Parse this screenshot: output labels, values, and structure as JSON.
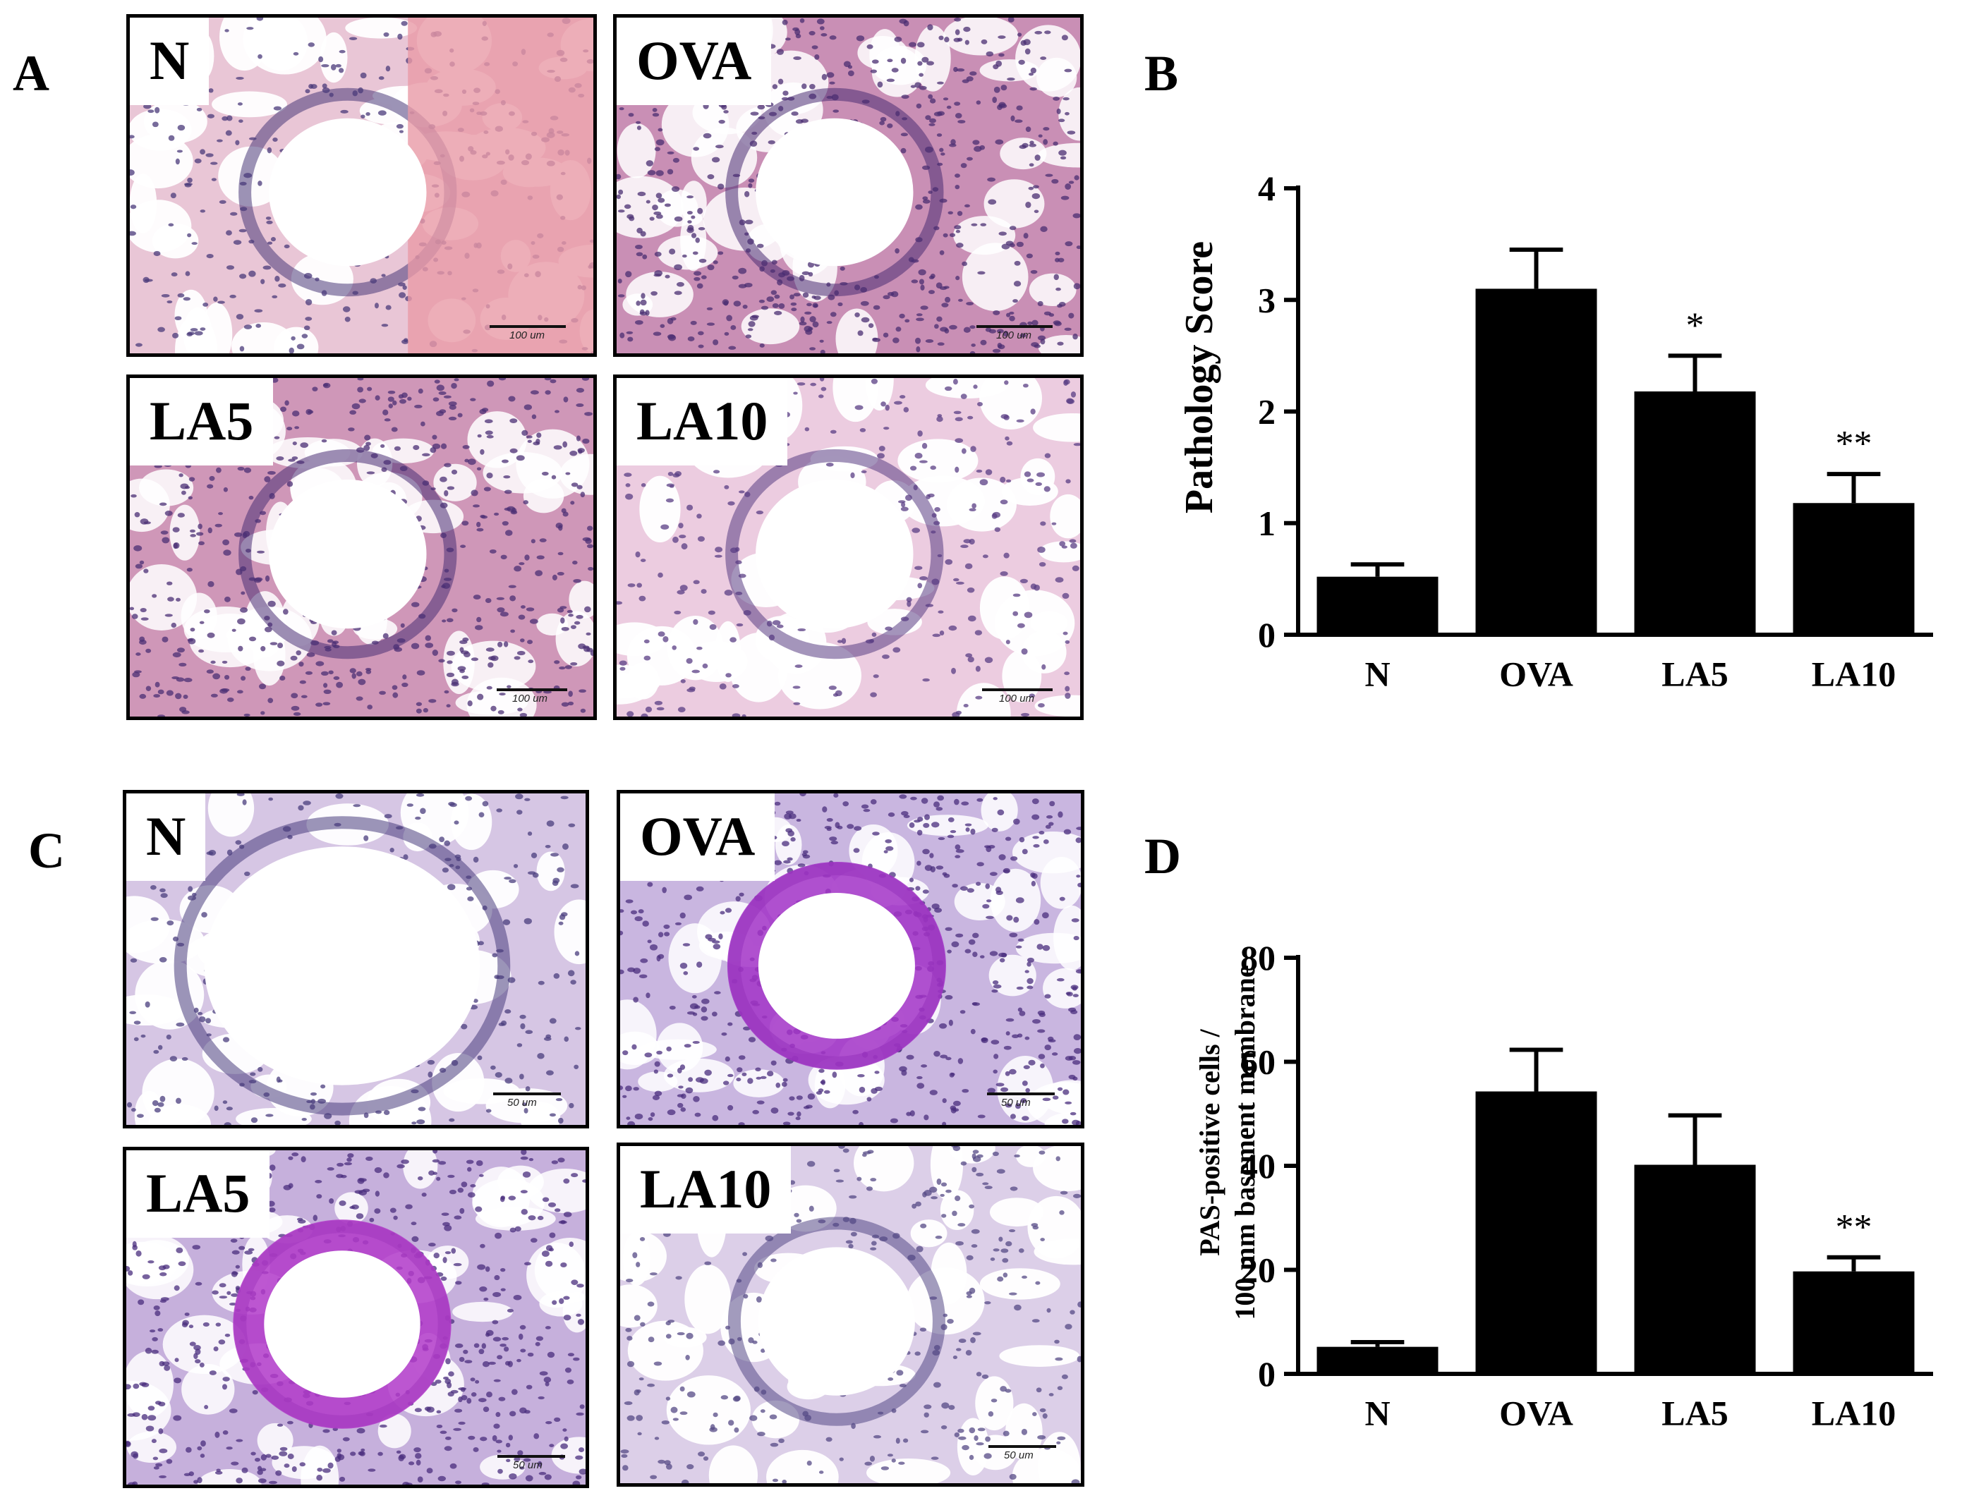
{
  "panels": {
    "A": {
      "letter": "A"
    },
    "B": {
      "letter": "B"
    },
    "C": {
      "letter": "C"
    },
    "D": {
      "letter": "D"
    }
  },
  "micrographs_A": [
    {
      "label": "N",
      "scale": "100 um",
      "stain": "HE",
      "tissue": "#e9c6d6",
      "nuclei": "#4a3a7a",
      "lumen": "#ffffff",
      "extra": "#e89aa6"
    },
    {
      "label": "OVA",
      "scale": "100 um",
      "stain": "HE",
      "tissue": "#c98fb5",
      "nuclei": "#4a2e72",
      "lumen": "#ffffff",
      "extra": "#d98fa6"
    },
    {
      "label": "LA5",
      "scale": "100 um",
      "stain": "HE",
      "tissue": "#cf97b8",
      "nuclei": "#4b2f74",
      "lumen": "#ffffff",
      "extra": "#d49ab3"
    },
    {
      "label": "LA10",
      "scale": "100 um",
      "stain": "HE",
      "tissue": "#eccce0",
      "nuclei": "#5a3e84",
      "lumen": "#ffffff",
      "extra": "#e7bfd6"
    }
  ],
  "micrographs_C": [
    {
      "label": "N",
      "scale": "50 um",
      "stain": "PAS",
      "tissue": "#d6c6e4",
      "nuclei": "#4a3e7e",
      "lumen": "#ffffff",
      "extra": "#d6c6e4"
    },
    {
      "label": "OVA",
      "scale": "50 um",
      "stain": "PAS",
      "tissue": "#c9b6e0",
      "nuclei": "#4a2e7e",
      "lumen": "#ffffff",
      "extra": "#a233c7"
    },
    {
      "label": "LA5",
      "scale": "50 um",
      "stain": "PAS",
      "tissue": "#c6b0dc",
      "nuclei": "#4a2e7e",
      "lumen": "#ffffff",
      "extra": "#b23ac9"
    },
    {
      "label": "LA10",
      "scale": "50 um",
      "stain": "PAS",
      "tissue": "#dccfe8",
      "nuclei": "#564a86",
      "lumen": "#ffffff",
      "extra": "#d9cde6"
    }
  ],
  "chart_data": [
    {
      "type": "bar",
      "panel": "B",
      "categories": [
        "N",
        "OVA",
        "LA5",
        "LA10"
      ],
      "values": [
        0.52,
        3.1,
        2.18,
        1.18
      ],
      "errors": [
        0.11,
        0.35,
        0.32,
        0.26
      ],
      "significance": [
        "",
        "",
        "*",
        "**"
      ],
      "ylabel": "Pathology Score",
      "ylim": [
        0,
        4
      ],
      "yticks": [
        0,
        1,
        2,
        3,
        4
      ],
      "ytick_labels": [
        "0",
        "1",
        "2",
        "3",
        "4"
      ],
      "grid": false,
      "bar_color": "#000000"
    },
    {
      "type": "bar",
      "panel": "D",
      "categories": [
        "N",
        "OVA",
        "LA5",
        "LA10"
      ],
      "values": [
        5.2,
        54.3,
        40.2,
        19.7
      ],
      "errors": [
        0.9,
        8.0,
        9.5,
        2.7
      ],
      "significance": [
        "",
        "",
        "",
        "**"
      ],
      "ylabel_lines": [
        "PAS-positive cells /",
        "100 mm basement membrane"
      ],
      "ylim": [
        0,
        80
      ],
      "yticks": [
        0,
        20,
        40,
        60,
        80
      ],
      "ytick_labels": [
        "0",
        "20",
        "40",
        "60",
        "80"
      ],
      "grid": false,
      "bar_color": "#000000"
    }
  ]
}
